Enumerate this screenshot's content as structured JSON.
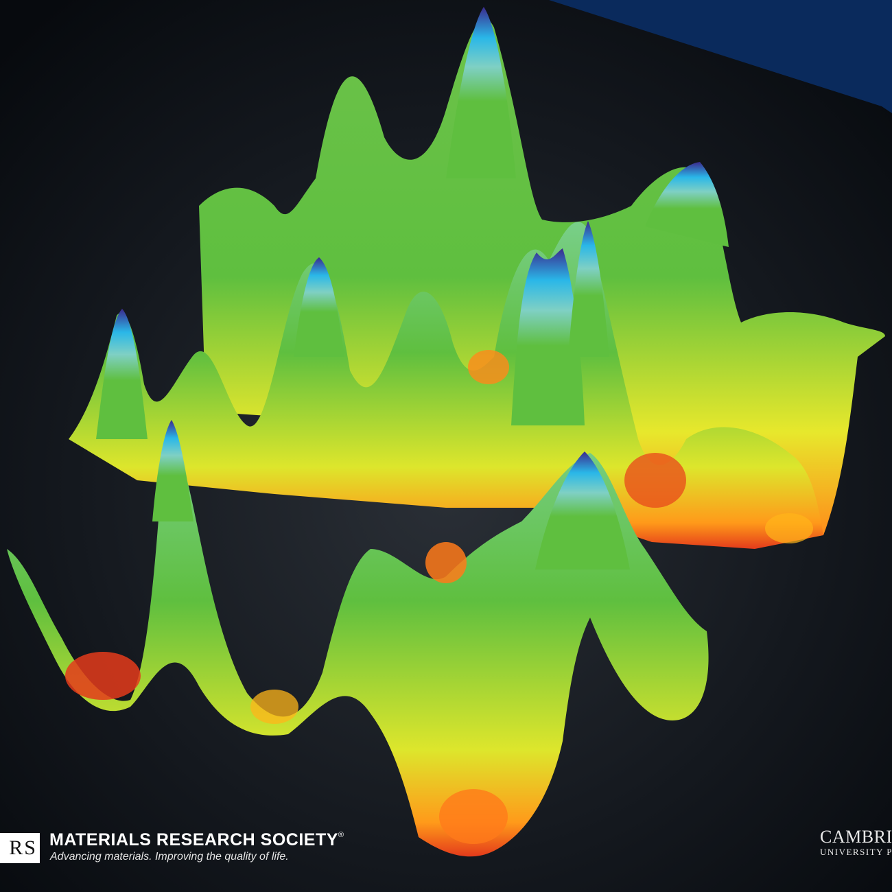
{
  "publisher": {
    "logo_letters": "RS",
    "name": "MATERIALS RESEARCH SOCIETY",
    "registered_mark": "®",
    "tagline": "Advancing materials. Improving the quality of life."
  },
  "press": {
    "line1": "CAMBRIDGE",
    "line2": "UNIVERSITY PRESS"
  },
  "image": {
    "subject": "3D surface plot with peaks and valleys",
    "colormap": [
      "#e43b1b",
      "#ff9a1a",
      "#f3ef25",
      "#5fbf3f",
      "#7ccfc9",
      "#23b7e8",
      "#3a2b8c"
    ],
    "accent_band_color": "#0a2a5c",
    "background_color": "#0b0e13"
  }
}
